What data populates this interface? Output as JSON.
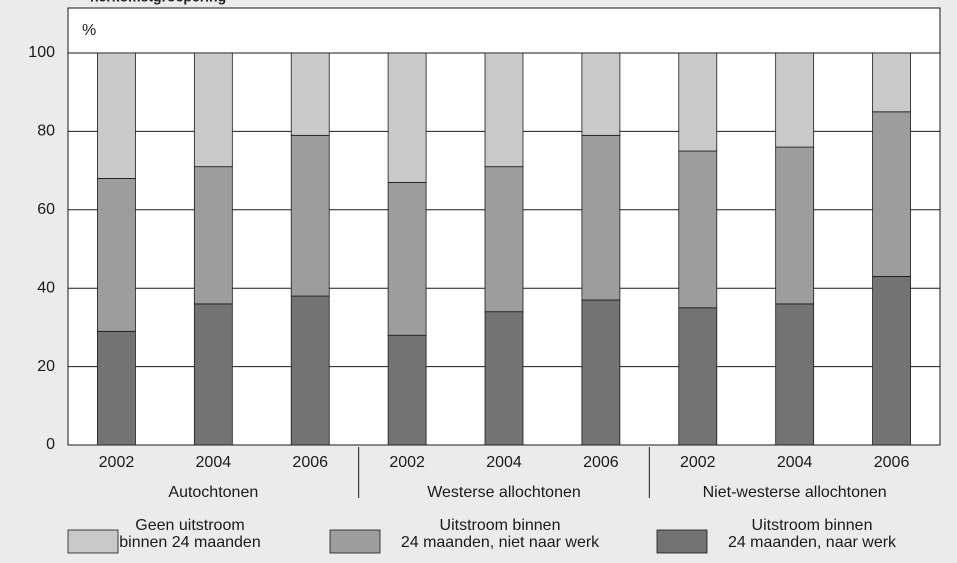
{
  "chart_data": {
    "type": "stacked_bar",
    "title": "herkomstgroepering",
    "y_label": "%",
    "groups": [
      "Autochtonen",
      "Westerse allochtonen",
      "Niet-westerse allochtonen"
    ],
    "categories": [
      "2002",
      "2004",
      "2006",
      "2002",
      "2004",
      "2006",
      "2002",
      "2004",
      "2006"
    ],
    "series": [
      {
        "name": "Geen uitstroom\nbinnen 24 maanden",
        "color": "#c9c9c9",
        "values": [
          32,
          29,
          21,
          33,
          29,
          21,
          25,
          24,
          15
        ]
      },
      {
        "name": "Uitstroom binnen\n24 maanden, niet naar werk",
        "color": "#9d9d9d",
        "values": [
          39,
          35,
          41,
          39,
          37,
          42,
          40,
          40,
          42
        ]
      },
      {
        "name": "Uitstroom binnen\n24 maanden, naar werk",
        "color": "#737373",
        "values": [
          29,
          36,
          38,
          28,
          34,
          37,
          35,
          36,
          43
        ]
      }
    ],
    "ylim": [
      0,
      100
    ],
    "yticks": [
      0,
      20,
      40,
      60,
      80,
      100
    ],
    "grid": true
  }
}
